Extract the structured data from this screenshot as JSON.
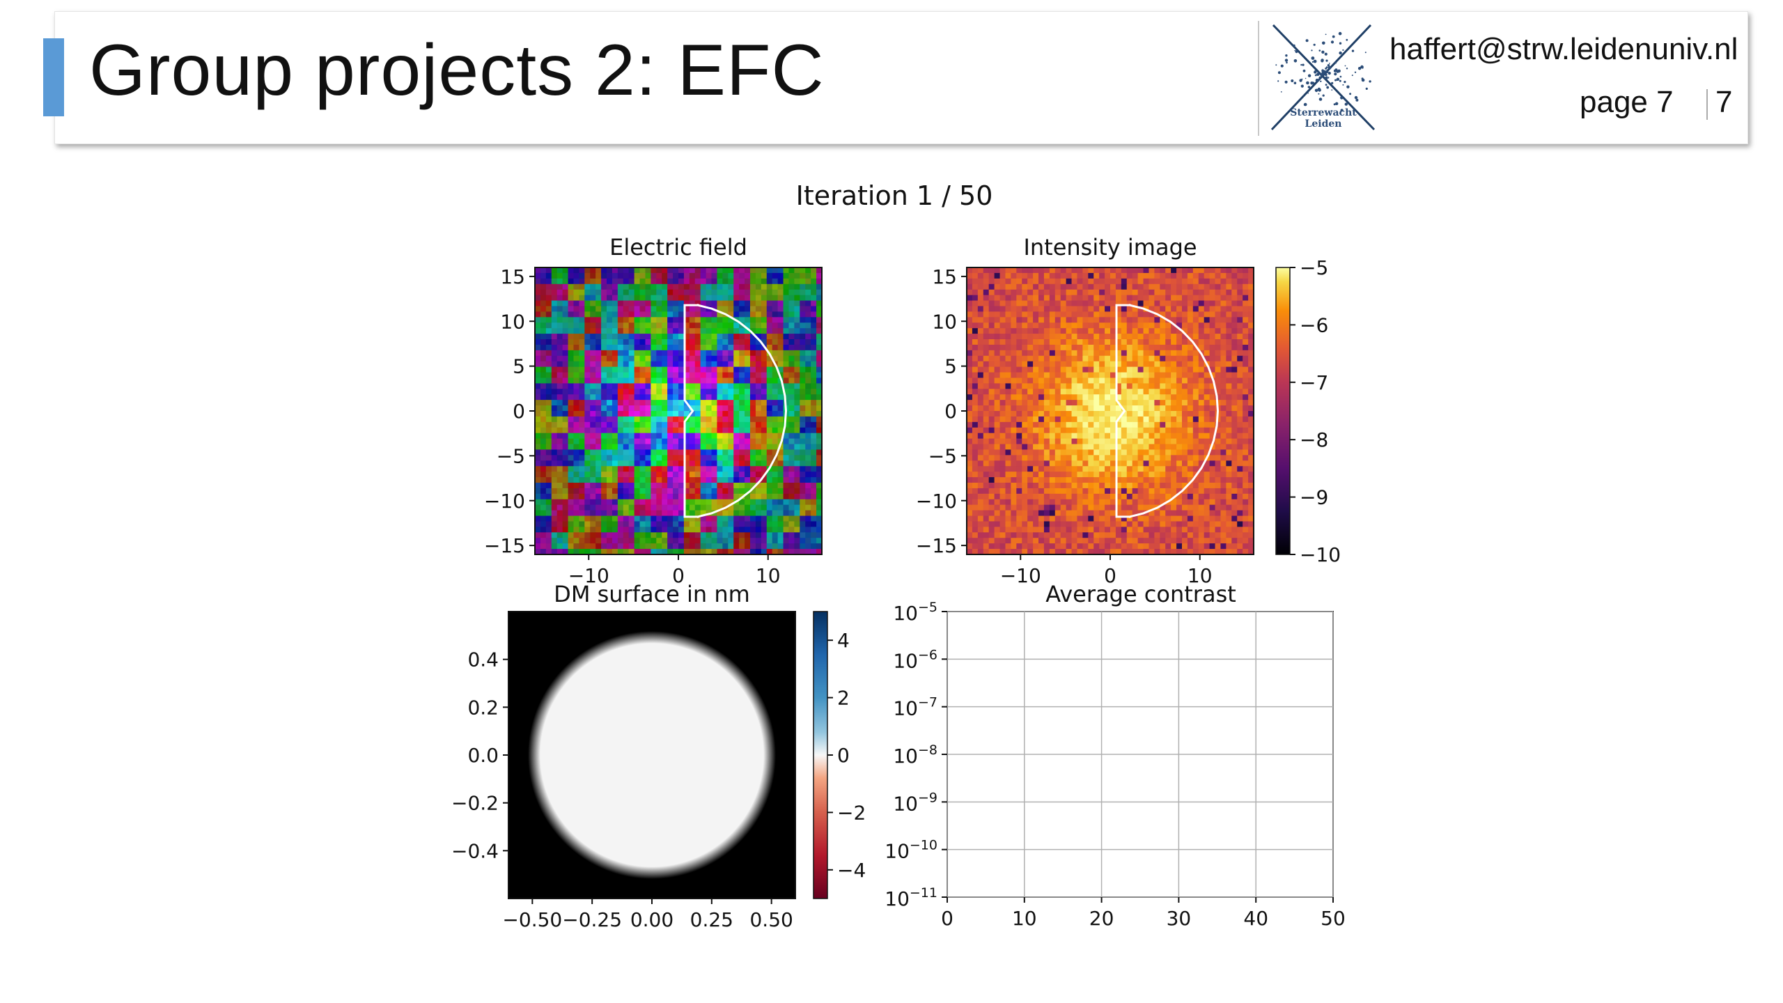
{
  "slide": {
    "title": "Group projects 2: EFC",
    "email": "haffert@strw.leidenuniv.nl",
    "page_label": "page 7",
    "page_number": "7",
    "logo_text": [
      "Sterrewacht",
      "Leiden"
    ],
    "accent_color": "#5a9ad6"
  },
  "figure": {
    "suptitle": "Iteration 1 / 50"
  },
  "chart_data": [
    {
      "type": "heatmap",
      "title": "Electric field",
      "colormap": "hsv phase (complex field)",
      "xlim": [
        -16,
        16
      ],
      "ylim": [
        -16,
        16
      ],
      "xticks": [
        "−10",
        "0",
        "10"
      ],
      "yticks": [
        "15",
        "10",
        "5",
        "0",
        "−5",
        "−10",
        "−15"
      ],
      "overlay": "white outline of dark-hole region (half annulus, x from 0.7 to 12)"
    },
    {
      "type": "heatmap",
      "title": "Intensity image",
      "colormap": "inferno",
      "xlim": [
        -16,
        16
      ],
      "ylim": [
        -16,
        16
      ],
      "xticks": [
        "−10",
        "0",
        "10"
      ],
      "yticks": [
        "15",
        "10",
        "5",
        "0",
        "−5",
        "−10",
        "−15"
      ],
      "colorbar": {
        "range": [
          -10,
          -5
        ],
        "ticks": [
          "−5",
          "−6",
          "−7",
          "−8",
          "−9",
          "−10"
        ]
      },
      "overlay": "white outline of dark-hole region"
    },
    {
      "type": "heatmap",
      "title": "DM surface in nm",
      "colormap": "RdBu",
      "xlim": [
        -0.6,
        0.6
      ],
      "ylim": [
        -0.6,
        0.6
      ],
      "xticks": [
        "−0.50",
        "−0.25",
        "0.00",
        "0.25",
        "0.50"
      ],
      "yticks": [
        "0.4",
        "0.2",
        "0.0",
        "−0.2",
        "−0.4"
      ],
      "colorbar": {
        "range": [
          -5,
          5
        ],
        "ticks": [
          "4",
          "2",
          "0",
          "−2",
          "−4"
        ]
      },
      "content": "flat surface (0 nm) inside circular pupil of radius 0.5"
    },
    {
      "type": "line",
      "title": "Average contrast",
      "xlim": [
        0,
        50
      ],
      "ylim": [
        "1e-11",
        "1e-5"
      ],
      "yscale": "log",
      "grid": true,
      "xticks": [
        "0",
        "10",
        "20",
        "30",
        "40",
        "50"
      ],
      "yticks": [
        {
          "base": "10",
          "exp": "−5"
        },
        {
          "base": "10",
          "exp": "−6"
        },
        {
          "base": "10",
          "exp": "−7"
        },
        {
          "base": "10",
          "exp": "−8"
        },
        {
          "base": "10",
          "exp": "−9"
        },
        {
          "base": "10",
          "exp": "−10"
        },
        {
          "base": "10",
          "exp": "−11"
        }
      ],
      "series": []
    }
  ]
}
